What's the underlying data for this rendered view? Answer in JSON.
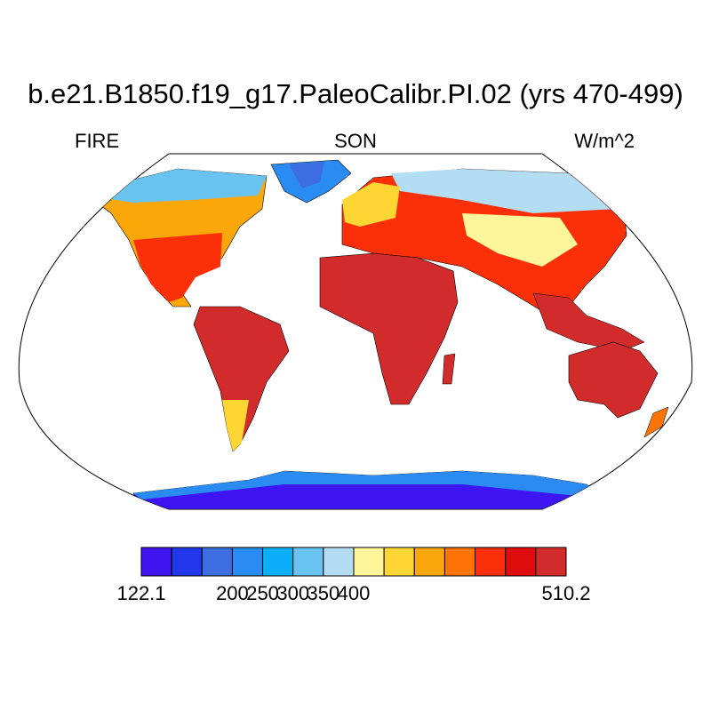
{
  "title": "b.e21.B1850.f19_g17.PaleoCalibr.PI.02 (yrs 470-499)",
  "subtitle_left": "FIRE",
  "subtitle_center": "SON",
  "subtitle_right": "W/m^2",
  "projection": "Robinson",
  "colorbar": {
    "min": "122.1",
    "max": "510.2",
    "tick_labels": [
      "122.1",
      "200",
      "250",
      "300",
      "350",
      "400",
      "510.2"
    ],
    "colors": [
      "#3d15f2",
      "#2236ea",
      "#3c6ee2",
      "#2a8cf2",
      "#0aaef9",
      "#68c3f0",
      "#b3ddf2",
      "#fff59a",
      "#fdd633",
      "#fca709",
      "#fc7307",
      "#fb3008",
      "#de0c0c",
      "#d12b2b"
    ]
  }
}
